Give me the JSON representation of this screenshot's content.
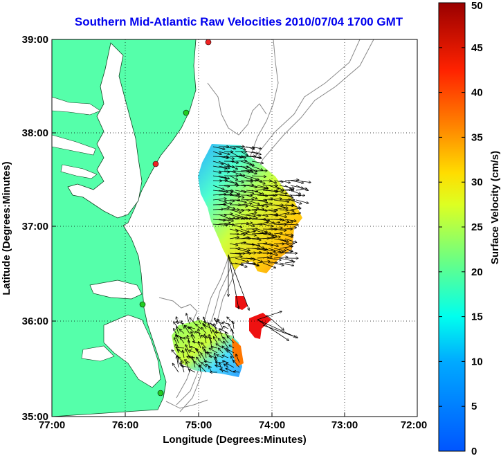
{
  "title": "Southern Mid-Atlantic Raw Velocities 2010/07/04 1700 GMT",
  "axes": {
    "xlabel": "Longitude (Degrees:Minutes)",
    "ylabel": "Latitude (Degrees:Minutes)",
    "x_ticks": [
      "77:00",
      "76:00",
      "75:00",
      "74:00",
      "73:00",
      "72:00"
    ],
    "y_ticks": [
      "39:00",
      "38:00",
      "37:00",
      "36:00",
      "35:00"
    ]
  },
  "colorbar": {
    "label": "Surface Velocity (cm/s)",
    "ticks": [
      "50",
      "45",
      "40",
      "35",
      "30",
      "25",
      "20",
      "15",
      "10",
      "5",
      "0"
    ],
    "range": [
      0,
      50
    ],
    "colormap": "jet"
  },
  "colors": {
    "land": "#55ffaa",
    "water": "#ffffff",
    "title": "#0000ee",
    "bathymetry": "#888888",
    "station_active": "#22cc22",
    "station_inactive": "#ee2222"
  },
  "map": {
    "lon_range": [
      -77,
      -72
    ],
    "lat_range": [
      35,
      39
    ],
    "grid": true,
    "stations": [
      {
        "lon": -74.9,
        "lat": 38.97,
        "status": "inactive"
      },
      {
        "lon": -75.15,
        "lat": 38.22,
        "status": "active"
      },
      {
        "lon": -75.55,
        "lat": 37.67,
        "status": "inactive"
      },
      {
        "lon": -75.73,
        "lat": 36.2,
        "status": "active"
      },
      {
        "lon": -75.5,
        "lat": 35.25,
        "status": "active"
      }
    ]
  }
}
